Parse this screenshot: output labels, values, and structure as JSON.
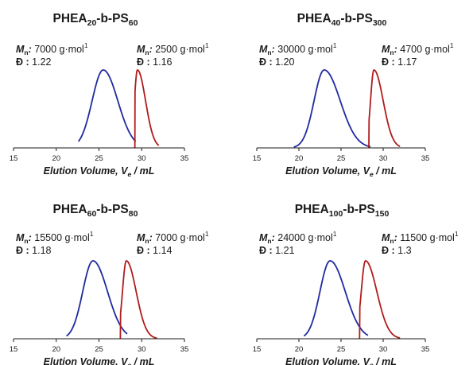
{
  "units_label": "g·mol",
  "units_exp": "1",
  "mn_symbol": "M",
  "mn_sub": "n",
  "disp_symbol": "Đ :",
  "colors": {
    "first_peak": "#1f2a9e",
    "second_peak": "#b01c1c",
    "axis": "#1a1a1a"
  },
  "chart_data": [
    {
      "type": "line",
      "title_main": "PHEA",
      "title_n1": "20",
      "title_mid": "-b-PS",
      "title_n2": "60",
      "xlabel_main": "Elution Volume, V",
      "xlabel_sub": "e",
      "xlabel_tail": " / mL",
      "xlim": [
        15,
        35
      ],
      "xticks": [
        "15",
        "20",
        "25",
        "30",
        "35"
      ],
      "series": [
        {
          "mn": "7000",
          "dispersity": "1.22",
          "peak": 25.5,
          "start": 22.6,
          "end": 29.3,
          "width_left": 1.3,
          "width_right": 1.7,
          "color": "#1f2a9e"
        },
        {
          "mn": "2500",
          "dispersity": "1.16",
          "peak": 29.5,
          "start": 29.2,
          "end": 32.0,
          "width_left": 0.35,
          "width_right": 0.95,
          "color": "#b01c1c"
        }
      ]
    },
    {
      "type": "line",
      "title_main": "PHEA",
      "title_n1": "40",
      "title_mid": "-b-PS",
      "title_n2": "300",
      "xlabel_main": "Elution Volume, V",
      "xlabel_sub": "e",
      "xlabel_tail": " / mL",
      "xlim": [
        15,
        35
      ],
      "xticks": [
        "15",
        "20",
        "25",
        "30",
        "35"
      ],
      "series": [
        {
          "mn": "30000",
          "dispersity": "1.20",
          "peak": 23.0,
          "start": 19.4,
          "end": 28.5,
          "width_left": 1.2,
          "width_right": 1.9,
          "color": "#1f2a9e"
        },
        {
          "mn": "4700",
          "dispersity": "1.17",
          "peak": 28.9,
          "start": 28.3,
          "end": 32.0,
          "width_left": 0.4,
          "width_right": 1.1,
          "color": "#b01c1c"
        }
      ]
    },
    {
      "type": "line",
      "title_main": "PHEA",
      "title_n1": "60",
      "title_mid": "-b-PS",
      "title_n2": "80",
      "xlabel_main": "Elution Volume, V",
      "xlabel_sub": "e",
      "xlabel_tail": " / mL",
      "xlim": [
        15,
        35
      ],
      "xticks": [
        "15",
        "20",
        "25",
        "30",
        "35"
      ],
      "series": [
        {
          "mn": "15500",
          "dispersity": "1.18",
          "peak": 24.3,
          "start": 21.2,
          "end": 28.3,
          "width_left": 1.2,
          "width_right": 1.7,
          "color": "#1f2a9e"
        },
        {
          "mn": "7000",
          "dispersity": "1.14",
          "peak": 28.2,
          "start": 27.5,
          "end": 31.8,
          "width_left": 0.45,
          "width_right": 1.15,
          "color": "#b01c1c"
        }
      ]
    },
    {
      "type": "line",
      "title_main": "PHEA",
      "title_n1": "100",
      "title_mid": "-b-PS",
      "title_n2": "150",
      "xlabel_main": "Elution Volume, V",
      "xlabel_sub": "e",
      "xlabel_tail": " / mL",
      "xlim": [
        15,
        35
      ],
      "xticks": [
        "15",
        "20",
        "25",
        "30",
        "35"
      ],
      "series": [
        {
          "mn": "24000",
          "dispersity": "1.21",
          "peak": 23.7,
          "start": 20.6,
          "end": 28.2,
          "width_left": 1.2,
          "width_right": 1.8,
          "color": "#1f2a9e"
        },
        {
          "mn": "11500",
          "dispersity": "1.3",
          "peak": 27.9,
          "start": 27.2,
          "end": 32.0,
          "width_left": 0.5,
          "width_right": 1.35,
          "color": "#b01c1c"
        }
      ]
    }
  ]
}
